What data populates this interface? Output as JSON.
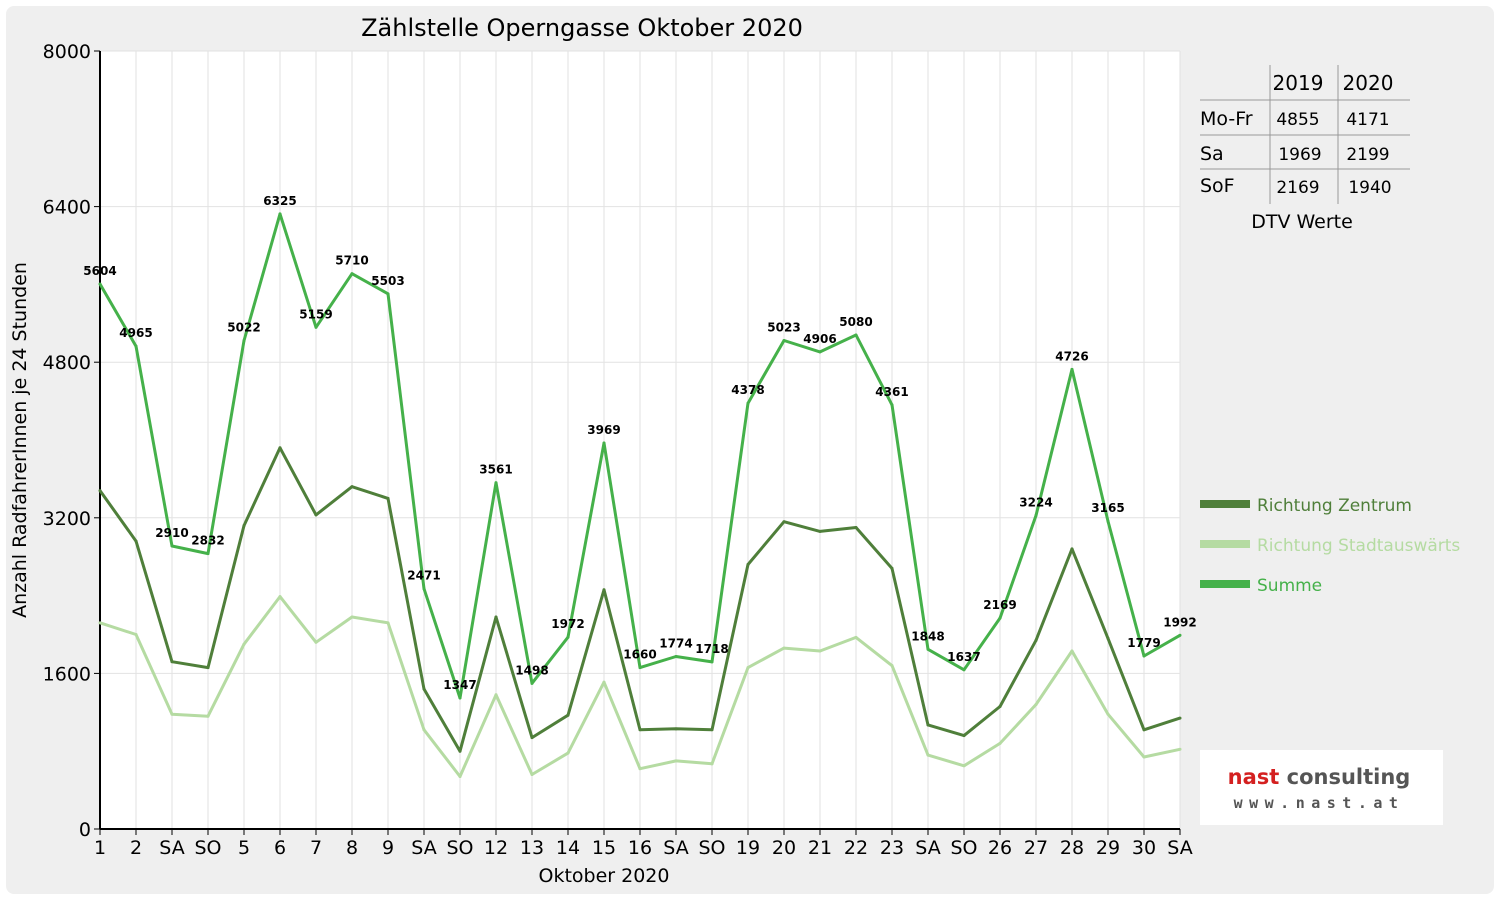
{
  "chart_data": {
    "type": "line",
    "title": "Zählstelle Operngasse Oktober 2020",
    "xlabel": "Oktober 2020",
    "ylabel": "Anzahl RadfahrerInnen je 24 Stunden",
    "ylim": [
      0,
      8000
    ],
    "yticks": [
      "0",
      "1600",
      "3200",
      "4800",
      "6400",
      "8000"
    ],
    "grid": true,
    "legend_position": "right",
    "categories": [
      "1",
      "2",
      "SA",
      "SO",
      "5",
      "6",
      "7",
      "8",
      "9",
      "SA",
      "SO",
      "12",
      "13",
      "14",
      "15",
      "16",
      "SA",
      "SO",
      "19",
      "20",
      "21",
      "22",
      "23",
      "SA",
      "SO",
      "26",
      "27",
      "28",
      "29",
      "30",
      "SA"
    ],
    "category_colors": [
      "#000000",
      "#000000",
      "#000000",
      "#e00000",
      "#000000",
      "#000000",
      "#000000",
      "#000000",
      "#000000",
      "#000000",
      "#e00000",
      "#000000",
      "#000000",
      "#000000",
      "#000000",
      "#000000",
      "#000000",
      "#e00000",
      "#000000",
      "#000000",
      "#000000",
      "#000000",
      "#000000",
      "#000000",
      "#e00000",
      "#e00000",
      "#000000",
      "#000000",
      "#000000",
      "#000000",
      "#000000"
    ],
    "series": [
      {
        "name": "Richtung Zentrum",
        "color": "#4f7f3a",
        "values": [
          3480,
          2960,
          1720,
          1660,
          3120,
          3920,
          3230,
          3520,
          3400,
          1440,
          800,
          2180,
          940,
          1170,
          2460,
          1020,
          1030,
          1020,
          2720,
          3160,
          3060,
          3100,
          2680,
          1070,
          960,
          1260,
          1940,
          2880,
          1960,
          1020,
          1140
        ]
      },
      {
        "name": "Richtung Stadtauswärts",
        "color": "#b5dba2",
        "values": [
          2120,
          2000,
          1180,
          1160,
          1900,
          2390,
          1920,
          2180,
          2120,
          1020,
          540,
          1380,
          560,
          780,
          1510,
          620,
          700,
          670,
          1660,
          1860,
          1830,
          1970,
          1680,
          760,
          650,
          880,
          1280,
          1830,
          1180,
          740,
          820
        ]
      },
      {
        "name": "Summe",
        "color": "#45b14a",
        "values": [
          5604,
          4965,
          2910,
          2832,
          5022,
          6325,
          5159,
          5710,
          5503,
          2471,
          1347,
          3561,
          1498,
          1972,
          3969,
          1660,
          1774,
          1718,
          4378,
          5023,
          4906,
          5080,
          4361,
          1848,
          1637,
          2169,
          3224,
          4726,
          3165,
          1779,
          1992
        ],
        "labels": [
          "5604",
          "4965",
          "2910",
          "2832",
          "5022",
          "6325",
          "5159",
          "5710",
          "5503",
          "2471",
          "1347",
          "3561",
          "1498",
          "1972",
          "3969",
          "1660",
          "1774",
          "1718",
          "4378",
          "5023",
          "4906",
          "5080",
          "4361",
          "1848",
          "1637",
          "2169",
          "3224",
          "4726",
          "3165",
          "1779",
          "1992"
        ]
      }
    ],
    "dtv_table": {
      "caption": "DTV Werte",
      "columns": [
        "",
        "2019",
        "2020"
      ],
      "rows": [
        {
          "label": "Mo-Fr",
          "v2019": "4855",
          "v2020": "4171"
        },
        {
          "label": "Sa",
          "v2019": "1969",
          "v2020": "2199"
        },
        {
          "label": "SoF",
          "v2019": "2169",
          "v2020": "1940"
        }
      ]
    }
  },
  "logo": {
    "brand": "nast consulting",
    "url": "www.nast.at",
    "dark_color": "#555555",
    "accent_color": "#d42020"
  }
}
